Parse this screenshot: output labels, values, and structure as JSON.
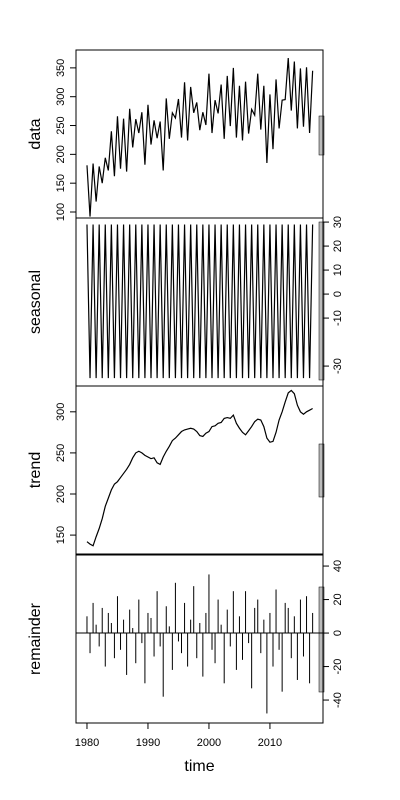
{
  "chart_data": [
    {
      "type": "line",
      "ylabel": "data",
      "tick_side": "left",
      "color": "#000000",
      "xlim": [
        1978.2,
        2018.7
      ],
      "ylim": [
        89.6,
        381
      ],
      "yticks": [
        100,
        150,
        200,
        250,
        300,
        350
      ],
      "x": [
        1980,
        1980.5,
        1981,
        1981.5,
        1982,
        1982.5,
        1983,
        1983.5,
        1984,
        1984.5,
        1985,
        1985.5,
        1986,
        1986.5,
        1987,
        1987.5,
        1988,
        1988.5,
        1989,
        1989.5,
        1990,
        1990.5,
        1991,
        1991.5,
        1992,
        1992.5,
        1993,
        1993.5,
        1994,
        1994.5,
        1995,
        1995.5,
        1996,
        1996.5,
        1997,
        1997.5,
        1998,
        1998.5,
        1999,
        1999.5,
        2000,
        2000.5,
        2001,
        2001.5,
        2002,
        2002.5,
        2003,
        2003.5,
        2004,
        2004.5,
        2005,
        2005.5,
        2006,
        2006.5,
        2007,
        2007.5,
        2008,
        2008.5,
        2009,
        2009.5,
        2010,
        2010.5,
        2011,
        2011.5,
        2012,
        2012.5,
        2013,
        2013.5,
        2014,
        2014.5,
        2015,
        2015.5,
        2016,
        2016.5,
        2017
      ],
      "values": [
        181,
        92,
        184,
        118,
        179,
        150,
        194,
        172,
        240,
        162,
        266,
        175,
        262,
        170,
        279,
        212,
        261,
        237,
        273,
        182,
        286,
        217,
        259,
        228,
        257,
        172,
        297,
        227,
        272,
        263,
        296,
        229,
        325,
        224,
        317,
        272,
        290,
        242,
        273,
        251,
        340,
        237,
        294,
        271,
        321,
        227,
        336,
        249,
        350,
        229,
        319,
        224,
        326,
        236,
        278,
        268,
        340,
        243,
        319,
        185,
        304,
        209,
        330,
        245,
        294,
        295,
        367,
        276,
        361,
        245,
        349,
        248,
        351,
        237,
        345
      ]
    },
    {
      "type": "line",
      "ylabel": "seasonal",
      "tick_side": "right",
      "color": "#000000",
      "xlim": [
        1978.2,
        2018.7
      ],
      "ylim": [
        -38.3,
        31.7
      ],
      "yticks": [
        -30,
        -10,
        0,
        10,
        20,
        30
      ],
      "x": [
        1980,
        1980.5,
        1981,
        1981.5,
        1982,
        1982.5,
        1983,
        1983.5,
        1984,
        1984.5,
        1985,
        1985.5,
        1986,
        1986.5,
        1987,
        1987.5,
        1988,
        1988.5,
        1989,
        1989.5,
        1990,
        1990.5,
        1991,
        1991.5,
        1992,
        1992.5,
        1993,
        1993.5,
        1994,
        1994.5,
        1995,
        1995.5,
        1996,
        1996.5,
        1997,
        1997.5,
        1998,
        1998.5,
        1999,
        1999.5,
        2000,
        2000.5,
        2001,
        2001.5,
        2002,
        2002.5,
        2003,
        2003.5,
        2004,
        2004.5,
        2005,
        2005.5,
        2006,
        2006.5,
        2007,
        2007.5,
        2008,
        2008.5,
        2009,
        2009.5,
        2010,
        2010.5,
        2011,
        2011.5,
        2012,
        2012.5,
        2013,
        2013.5,
        2014,
        2014.5,
        2015,
        2015.5,
        2016,
        2016.5,
        2017
      ],
      "values": [
        29,
        -35,
        29,
        -35,
        29,
        -35,
        29,
        -35,
        29,
        -35,
        29,
        -35,
        29,
        -35,
        29,
        -35,
        29,
        -35,
        29,
        -35,
        29,
        -35,
        29,
        -35,
        29,
        -35,
        29,
        -35,
        29,
        -35,
        29,
        -35,
        29,
        -35,
        29,
        -35,
        29,
        -35,
        29,
        -35,
        29,
        -35,
        29,
        -35,
        29,
        -35,
        29,
        -35,
        29,
        -35,
        29,
        -35,
        29,
        -35,
        29,
        -35,
        29,
        -35,
        29,
        -35,
        29,
        -35,
        29,
        -35,
        29,
        -35,
        29,
        -35,
        29,
        -35,
        29,
        -35,
        29,
        -35,
        29
      ]
    },
    {
      "type": "line",
      "ylabel": "trend",
      "tick_side": "left",
      "color": "#000000",
      "xlim": [
        1978.2,
        2018.7
      ],
      "ylim": [
        127,
        331.4
      ],
      "yticks": [
        150,
        200,
        250,
        300
      ],
      "x": [
        1980,
        1980.5,
        1981,
        1981.5,
        1982,
        1982.5,
        1983,
        1983.5,
        1984,
        1984.5,
        1985,
        1985.5,
        1986,
        1986.5,
        1987,
        1987.5,
        1988,
        1988.5,
        1989,
        1989.5,
        1990,
        1990.5,
        1991,
        1991.5,
        1992,
        1992.5,
        1993,
        1993.5,
        1994,
        1994.5,
        1995,
        1995.5,
        1996,
        1996.5,
        1997,
        1997.5,
        1998,
        1998.5,
        1999,
        1999.5,
        2000,
        2000.5,
        2001,
        2001.5,
        2002,
        2002.5,
        2003,
        2003.5,
        2004,
        2004.5,
        2005,
        2005.5,
        2006,
        2006.5,
        2007,
        2007.5,
        2008,
        2008.5,
        2009,
        2009.5,
        2010,
        2010.5,
        2011,
        2011.5,
        2012,
        2012.5,
        2013,
        2013.5,
        2014,
        2014.5,
        2015,
        2015.5,
        2016,
        2016.5,
        2017
      ],
      "values": [
        142,
        139,
        137,
        148,
        158,
        170,
        185,
        195,
        205,
        212,
        215,
        220,
        225,
        230,
        236,
        244,
        250,
        252,
        250,
        247,
        245,
        243,
        244,
        238,
        236,
        245,
        252,
        258,
        265,
        268,
        272,
        276,
        278,
        279,
        280,
        279,
        276,
        271,
        270,
        274,
        276,
        282,
        283,
        286,
        287,
        292,
        293,
        292,
        296,
        286,
        280,
        275,
        272,
        277,
        282,
        288,
        291,
        290,
        282,
        268,
        263,
        264,
        275,
        290,
        300,
        312,
        323,
        326,
        322,
        308,
        300,
        297,
        300,
        302,
        304
      ]
    },
    {
      "type": "spike",
      "ylabel": "remainder",
      "tick_side": "right",
      "color": "#000000",
      "hline": 0,
      "xlim": [
        1978.2,
        2018.7
      ],
      "ylim": [
        -53.7,
        46.6
      ],
      "yticks": [
        -40,
        -20,
        0,
        20,
        40
      ],
      "xlabel": "time",
      "xticks": [
        1980,
        1990,
        2000,
        2010
      ],
      "x": [
        1980,
        1980.5,
        1981,
        1981.5,
        1982,
        1982.5,
        1983,
        1983.5,
        1984,
        1984.5,
        1985,
        1985.5,
        1986,
        1986.5,
        1987,
        1987.5,
        1988,
        1988.5,
        1989,
        1989.5,
        1990,
        1990.5,
        1991,
        1991.5,
        1992,
        1992.5,
        1993,
        1993.5,
        1994,
        1994.5,
        1995,
        1995.5,
        1996,
        1996.5,
        1997,
        1997.5,
        1998,
        1998.5,
        1999,
        1999.5,
        2000,
        2000.5,
        2001,
        2001.5,
        2002,
        2002.5,
        2003,
        2003.5,
        2004,
        2004.5,
        2005,
        2005.5,
        2006,
        2006.5,
        2007,
        2007.5,
        2008,
        2008.5,
        2009,
        2009.5,
        2010,
        2010.5,
        2011,
        2011.5,
        2012,
        2012.5,
        2013,
        2013.5,
        2014,
        2014.5,
        2015,
        2015.5,
        2016,
        2016.5,
        2017
      ],
      "values": [
        10,
        -12,
        18,
        5,
        -8,
        15,
        -20,
        12,
        6,
        -15,
        22,
        -10,
        8,
        -25,
        14,
        3,
        -18,
        20,
        -6,
        -30,
        12,
        9,
        -14,
        25,
        -8,
        -38,
        16,
        4,
        -22,
        30,
        -5,
        -12,
        18,
        -20,
        8,
        28,
        -15,
        6,
        -26,
        12,
        35,
        -10,
        -18,
        20,
        5,
        -30,
        14,
        -8,
        25,
        -22,
        10,
        -16,
        25,
        -6,
        -33,
        15,
        20,
        -12,
        8,
        -48,
        12,
        -20,
        26,
        -10,
        -35,
        18,
        15,
        -15,
        10,
        -28,
        20,
        -14,
        22,
        -30,
        12
      ]
    }
  ]
}
